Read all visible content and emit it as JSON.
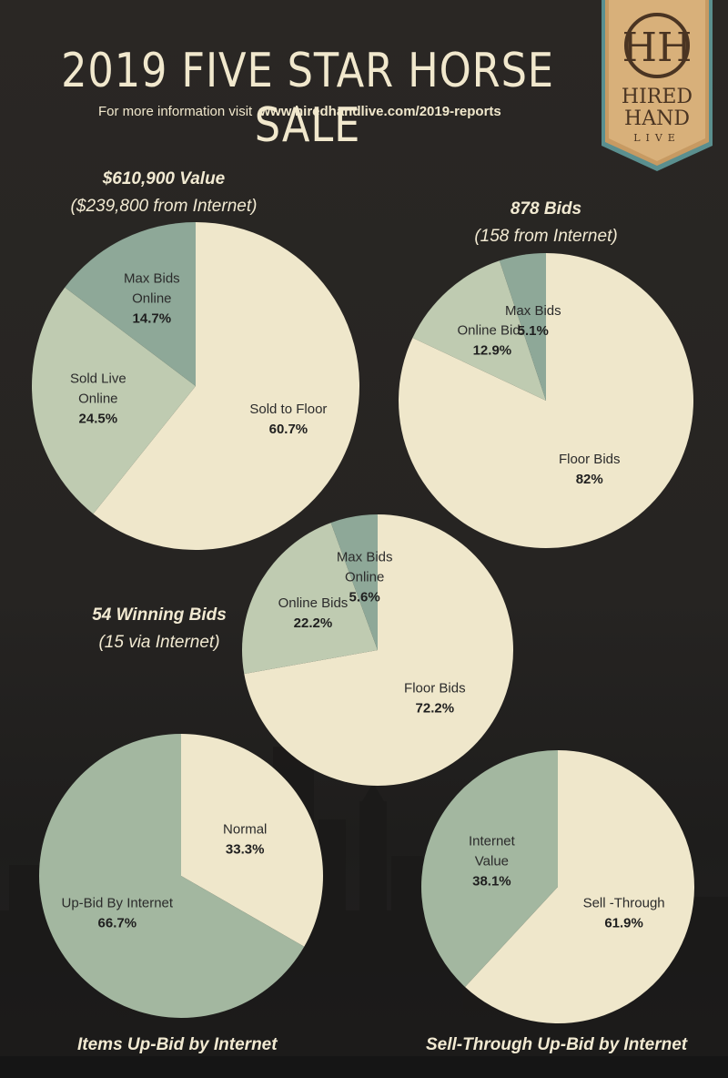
{
  "header": {
    "title": "2019 FIVE STAR HORSE SALE",
    "subtitle_prefix": "For more information visit",
    "subtitle_url": "www.hiredhandlive.com/2019-reports"
  },
  "logo": {
    "monogram": "HH",
    "line1": "HIRED",
    "line2": "HAND",
    "line3": "LIVE"
  },
  "colors": {
    "cream": "#efe7cb",
    "light_green": "#bfcbb1",
    "sage": "#8ea898",
    "mid_green": "#a3b7a0"
  },
  "chart_data": [
    {
      "type": "pie",
      "heading": "$610,900 Value",
      "subheading": "($239,800 from Internet)",
      "slices": [
        {
          "label_lines": [
            "Sold to Floor"
          ],
          "value": 60.7,
          "value_label": "60.7%",
          "color": "#efe7cb"
        },
        {
          "label_lines": [
            "Sold Live",
            "Online"
          ],
          "value": 24.5,
          "value_label": "24.5%",
          "color": "#bfcbb1"
        },
        {
          "label_lines": [
            "Max Bids",
            "Online"
          ],
          "value": 14.7,
          "value_label": "14.7%",
          "color": "#8ea898"
        }
      ]
    },
    {
      "type": "pie",
      "heading": "878 Bids",
      "subheading": "(158 from Internet)",
      "slices": [
        {
          "label_lines": [
            "Floor Bids"
          ],
          "value": 82,
          "value_label": "82%",
          "color": "#efe7cb"
        },
        {
          "label_lines": [
            "Online Bids"
          ],
          "value": 12.9,
          "value_label": "12.9%",
          "color": "#bfcbb1"
        },
        {
          "label_lines": [
            "Max Bids"
          ],
          "value": 5.1,
          "value_label": "5.1%",
          "color": "#8ea898"
        }
      ]
    },
    {
      "type": "pie",
      "heading": "54 Winning Bids",
      "subheading": "(15 via Internet)",
      "slices": [
        {
          "label_lines": [
            "Floor Bids"
          ],
          "value": 72.2,
          "value_label": "72.2%",
          "color": "#efe7cb"
        },
        {
          "label_lines": [
            "Online Bids"
          ],
          "value": 22.2,
          "value_label": "22.2%",
          "color": "#bfcbb1"
        },
        {
          "label_lines": [
            "Max Bids",
            "Online"
          ],
          "value": 5.6,
          "value_label": "5.6%",
          "color": "#8ea898"
        }
      ]
    },
    {
      "type": "pie",
      "heading": "Items Up-Bid by Internet",
      "slices": [
        {
          "label_lines": [
            "Normal"
          ],
          "value": 33.3,
          "value_label": "33.3%",
          "color": "#efe7cb"
        },
        {
          "label_lines": [
            "Up-Bid By Internet"
          ],
          "value": 66.7,
          "value_label": "66.7%",
          "color": "#a3b7a0"
        }
      ]
    },
    {
      "type": "pie",
      "heading": "Sell-Through Up-Bid by Internet",
      "slices": [
        {
          "label_lines": [
            "Sell -Through"
          ],
          "value": 61.9,
          "value_label": "61.9%",
          "color": "#efe7cb"
        },
        {
          "label_lines": [
            "Internet",
            "Value"
          ],
          "value": 38.1,
          "value_label": "38.1%",
          "color": "#a3b7a0"
        }
      ]
    }
  ]
}
